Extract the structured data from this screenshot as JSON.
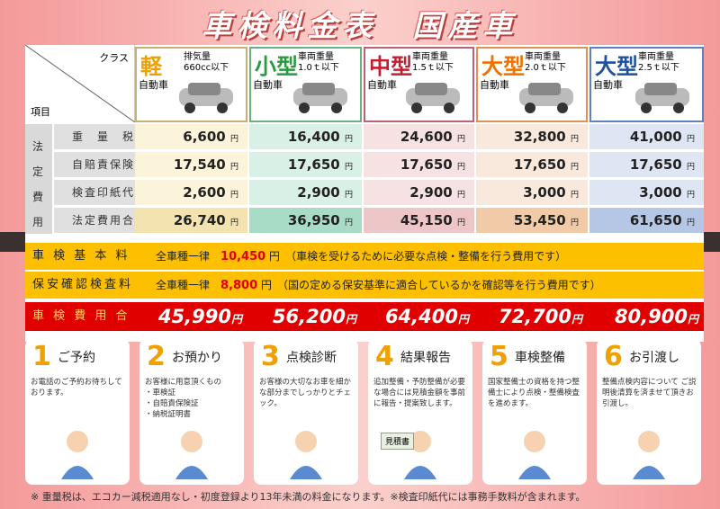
{
  "title": "車検料金表　国産車",
  "header": {
    "class_label": "クラス",
    "item_label": "項目"
  },
  "classes": [
    {
      "big": "軽",
      "sub1": "排気量",
      "sub2": "660cc以下",
      "auto": "自動車",
      "color": "#f0a000",
      "border": "#c8b070"
    },
    {
      "big": "小型",
      "sub1": "車両重量",
      "sub2": "1.0ｔ以下",
      "auto": "自動車",
      "color": "#2a9a40",
      "border": "#6ab080"
    },
    {
      "big": "中型",
      "sub1": "車両重量",
      "sub2": "1.5ｔ以下",
      "auto": "自動車",
      "color": "#c02030",
      "border": "#c06070"
    },
    {
      "big": "大型",
      "sub1": "車両重量",
      "sub2": "2.0ｔ以下",
      "auto": "自動車",
      "color": "#f07000",
      "border": "#e09050"
    },
    {
      "big": "大型",
      "sub1": "車両重量",
      "sub2": "2.5ｔ以下",
      "auto": "自動車",
      "color": "#2050a0",
      "border": "#6080c0"
    }
  ],
  "houtei_label": [
    "法",
    "定",
    "費",
    "用"
  ],
  "rows": [
    {
      "label": "重　量　税",
      "values": [
        "6,600",
        "16,400",
        "24,600",
        "32,800",
        "41,000"
      ]
    },
    {
      "label": "自賠責保険",
      "values": [
        "17,540",
        "17,650",
        "17,650",
        "17,650",
        "17,650"
      ]
    },
    {
      "label": "検査印紙代",
      "values": [
        "2,600",
        "2,900",
        "2,900",
        "3,000",
        "3,000"
      ]
    },
    {
      "label": "法定費用合計",
      "values": [
        "26,740",
        "36,950",
        "45,150",
        "53,450",
        "61,650"
      ]
    }
  ],
  "yen": "円",
  "kihon": {
    "label": "車 検 基 本 料",
    "prefix": "全車種一律",
    "price": "10,450",
    "yen": "円",
    "desc": "（車検を受けるために必要な点検・整備を行う費用です）"
  },
  "hoan": {
    "label": "保安確認検査料",
    "prefix": "全車種一律",
    "price": "8,800",
    "yen": "円",
    "desc": "（国の定める保安基準に適合しているかを確認等を行う費用です）"
  },
  "total": {
    "label": "車 検 費 用 合 計",
    "values": [
      "45,990",
      "56,200",
      "64,400",
      "72,700",
      "80,900"
    ],
    "yen": "円"
  },
  "steps": [
    {
      "num": "1",
      "head": "ご予約",
      "text": "お電話のご予約お待ちしております。"
    },
    {
      "num": "2",
      "head": "お預かり",
      "text": "お客様に用意頂くもの\n・車検証\n・自賠責保険証\n・納税証明書"
    },
    {
      "num": "3",
      "head": "点検診断",
      "text": "お客様の大切なお車を細かな部分までしっかりとチェック。"
    },
    {
      "num": "4",
      "head": "結果報告",
      "text": "追加整備・予防整備が必要な場合には見積金額を事前に報告・提案致します。",
      "doc": "見積書"
    },
    {
      "num": "5",
      "head": "車検整備",
      "text": "国家整備士の資格を持つ整備士により点検・整備検査を進めます。"
    },
    {
      "num": "6",
      "head": "お引渡し",
      "text": "整備点検内容について ご説明後清算を済ませて頂きお引渡し。"
    }
  ],
  "note": "※ 重量税は、エコカー減税適用なし・初度登録より13年未満の料金になります。※検査印紙代には事務手数料が含まれます。"
}
